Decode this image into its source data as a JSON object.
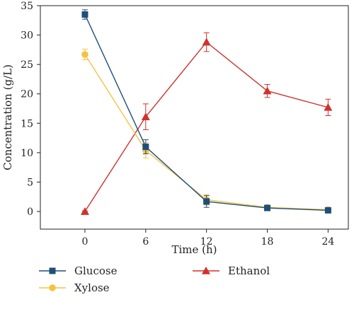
{
  "chart_data": {
    "type": "line",
    "xlabel": "Time (h)",
    "ylabel": "Concentration (g/L)",
    "x": [
      0,
      6,
      12,
      18,
      24
    ],
    "x_ticks": [
      "0",
      "6",
      "12",
      "18",
      "24"
    ],
    "y_ticks": [
      "0",
      "5",
      "10",
      "15",
      "20",
      "25",
      "30",
      "35"
    ],
    "xlim": [
      -4.4,
      26
    ],
    "ylim": [
      -3,
      35
    ],
    "legend_position": "bottom",
    "series": [
      {
        "name": "Glucose",
        "color": "#1f4e79",
        "marker": "square",
        "values": [
          33.5,
          11.0,
          1.7,
          0.6,
          0.2
        ],
        "errors": [
          0.8,
          1.2,
          1.0,
          0.3,
          0.2
        ]
      },
      {
        "name": "Xylose",
        "color": "#f5c242",
        "marker": "circle",
        "values": [
          26.7,
          10.4,
          2.0,
          0.7,
          0.3
        ],
        "errors": [
          0.9,
          1.3,
          0.9,
          0.3,
          0.2
        ]
      },
      {
        "name": "Ethanol",
        "color": "#d0312d",
        "marker": "triangle",
        "values": [
          0,
          16.1,
          28.8,
          20.5,
          17.7
        ],
        "errors": [
          0.1,
          2.2,
          1.6,
          1.1,
          1.4
        ]
      }
    ]
  }
}
